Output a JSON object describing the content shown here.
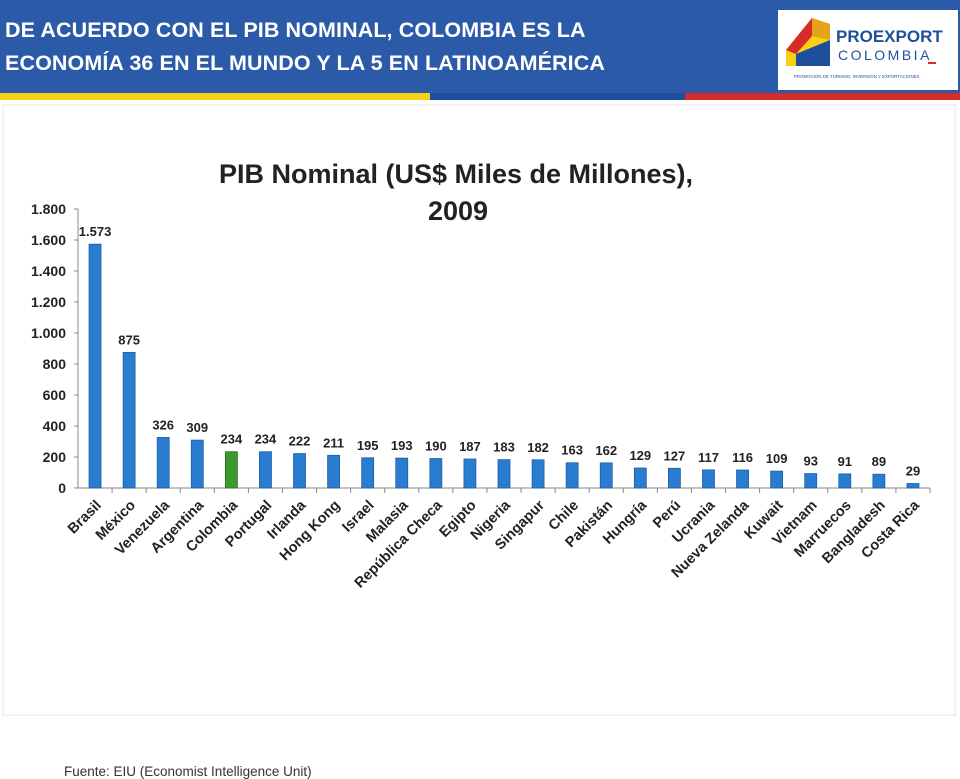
{
  "header": {
    "title": "DE ACUERDO CON EL PIB NOMINAL, COLOMBIA ES LA\nECONOMÍA 36 EN EL MUNDO Y LA 5 EN LATINOAMÉRICA",
    "logo_text_1": "PROEXPORT",
    "logo_text_2": "COLOMBIA",
    "logo_tagline": "PROMOCIÓN DE TURISMO, INVERSIÓN Y EXPORTACIONES.",
    "stripe_colors": [
      "#f7d117",
      "#1f4f9c",
      "#d62b2b"
    ]
  },
  "colors": {
    "bar": "#2a7cd1",
    "bar_highlight": "#3a9b2c",
    "header_bg": "#2b5aa8"
  },
  "chart_data": {
    "type": "bar",
    "title": "PIB Nominal (US$ Miles de Millones),",
    "subtitle": "2009",
    "xlabel": "",
    "ylabel": "",
    "ylim": [
      0,
      1800
    ],
    "yticks": [
      0,
      200,
      400,
      600,
      800,
      1000,
      1200,
      1400,
      1600,
      1800
    ],
    "ytick_labels": [
      "0",
      "200",
      "400",
      "600",
      "800",
      "1.000",
      "1.200",
      "1.400",
      "1.600",
      "1.800"
    ],
    "categories": [
      "Brasil",
      "México",
      "Venezuela",
      "Argentina",
      "Colombia",
      "Portugal",
      "Irlanda",
      "Hong Kong",
      "Israel",
      "Malasia",
      "República Checa",
      "Egipto",
      "Nigeria",
      "Singapur",
      "Chile",
      "Pakistán",
      "Hungría",
      "Perú",
      "Ucrania",
      "Nueva Zelanda",
      "Kuwait",
      "Vietnam",
      "Marruecos",
      "Bangladesh",
      "Costa Rica"
    ],
    "values": [
      1573,
      875,
      326,
      309,
      234,
      234,
      222,
      211,
      195,
      193,
      190,
      187,
      183,
      182,
      163,
      162,
      129,
      127,
      117,
      116,
      109,
      93,
      91,
      89,
      29
    ],
    "value_labels": [
      "1.573",
      "875",
      "326",
      "309",
      "234",
      "234",
      "222",
      "211",
      "195",
      "193",
      "190",
      "187",
      "183",
      "182",
      "163",
      "162",
      "129",
      "127",
      "117",
      "116",
      "109",
      "93",
      "91",
      "89",
      "29"
    ],
    "highlight": "Colombia",
    "grid": false,
    "legend": "none"
  },
  "source_note": "Fuente: EIU (Economist Intelligence Unit)"
}
